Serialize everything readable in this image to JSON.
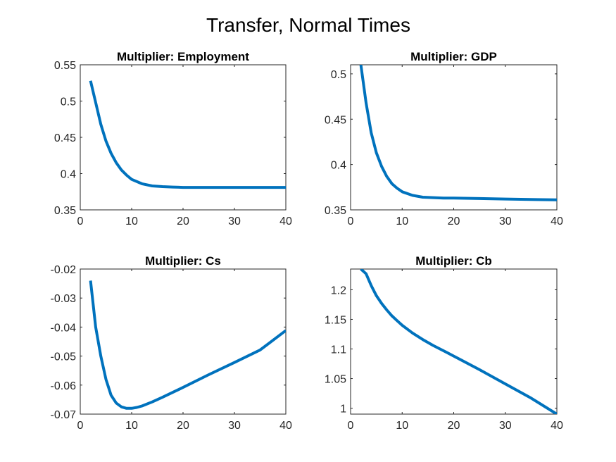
{
  "figure": {
    "title": "Transfer, Normal Times"
  },
  "colors": {
    "line": "#0072BD",
    "axis": "#262626",
    "background": "#ffffff"
  },
  "chart_data": [
    {
      "type": "line",
      "title": "Multiplier: Employment",
      "xlabel": "",
      "ylabel": "",
      "xlim": [
        0,
        40
      ],
      "ylim": [
        0.35,
        0.55
      ],
      "xticks": [
        0,
        10,
        20,
        30,
        40
      ],
      "xtick_labels": [
        "0",
        "10",
        "20",
        "30",
        "40"
      ],
      "yticks": [
        0.35,
        0.4,
        0.45,
        0.5,
        0.55
      ],
      "ytick_labels": [
        "0.35",
        "0.4",
        "0.45",
        "0.5",
        "0.55"
      ],
      "grid": false,
      "series": [
        {
          "x": [
            2,
            3,
            4,
            5,
            6,
            7,
            8,
            9,
            10,
            12,
            14,
            16,
            18,
            20,
            25,
            30,
            35,
            40
          ],
          "values": [
            0.528,
            0.498,
            0.468,
            0.445,
            0.428,
            0.415,
            0.405,
            0.398,
            0.392,
            0.386,
            0.383,
            0.382,
            0.3815,
            0.381,
            0.381,
            0.381,
            0.381,
            0.381
          ]
        }
      ]
    },
    {
      "type": "line",
      "title": "Multiplier: GDP",
      "xlabel": "",
      "ylabel": "",
      "xlim": [
        0,
        40
      ],
      "ylim": [
        0.35,
        0.51
      ],
      "xticks": [
        0,
        10,
        20,
        30,
        40
      ],
      "xtick_labels": [
        "0",
        "10",
        "20",
        "30",
        "40"
      ],
      "yticks": [
        0.35,
        0.4,
        0.45,
        0.5
      ],
      "ytick_labels": [
        "0.35",
        "0.4",
        "0.45",
        "0.5"
      ],
      "grid": false,
      "series": [
        {
          "x": [
            2,
            3,
            4,
            5,
            6,
            7,
            8,
            9,
            10,
            12,
            14,
            16,
            18,
            20,
            25,
            30,
            35,
            40
          ],
          "values": [
            0.51,
            0.468,
            0.435,
            0.413,
            0.398,
            0.387,
            0.379,
            0.374,
            0.37,
            0.366,
            0.364,
            0.3635,
            0.363,
            0.363,
            0.3625,
            0.362,
            0.3615,
            0.361
          ]
        }
      ]
    },
    {
      "type": "line",
      "title": "Multiplier: Cs",
      "xlabel": "",
      "ylabel": "",
      "xlim": [
        0,
        40
      ],
      "ylim": [
        -0.07,
        -0.02
      ],
      "xticks": [
        0,
        10,
        20,
        30,
        40
      ],
      "xtick_labels": [
        "0",
        "10",
        "20",
        "30",
        "40"
      ],
      "yticks": [
        -0.07,
        -0.06,
        -0.05,
        -0.04,
        -0.03,
        -0.02
      ],
      "ytick_labels": [
        "-0.07",
        "-0.06",
        "-0.05",
        "-0.04",
        "-0.03",
        "-0.02"
      ],
      "grid": false,
      "series": [
        {
          "x": [
            2,
            3,
            4,
            5,
            6,
            7,
            8,
            9,
            10,
            11,
            12,
            14,
            16,
            18,
            20,
            25,
            30,
            35,
            40
          ],
          "values": [
            -0.024,
            -0.04,
            -0.05,
            -0.058,
            -0.0635,
            -0.0662,
            -0.0675,
            -0.068,
            -0.068,
            -0.0677,
            -0.0672,
            -0.0658,
            -0.0642,
            -0.0625,
            -0.0608,
            -0.0564,
            -0.0522,
            -0.0479,
            -0.0412
          ]
        }
      ]
    },
    {
      "type": "line",
      "title": "Multiplier: Cb",
      "xlabel": "",
      "ylabel": "",
      "xlim": [
        0,
        40
      ],
      "ylim": [
        0.99,
        1.235
      ],
      "xticks": [
        0,
        10,
        20,
        30,
        40
      ],
      "xtick_labels": [
        "0",
        "10",
        "20",
        "30",
        "40"
      ],
      "yticks": [
        1,
        1.05,
        1.1,
        1.15,
        1.2
      ],
      "ytick_labels": [
        "1",
        "1.05",
        "1.1",
        "1.15",
        "1.2"
      ],
      "grid": false,
      "series": [
        {
          "x": [
            2,
            3,
            4,
            5,
            6,
            7,
            8,
            9,
            10,
            12,
            14,
            16,
            18,
            20,
            25,
            30,
            35,
            40
          ],
          "values": [
            1.235,
            1.227,
            1.207,
            1.19,
            1.177,
            1.166,
            1.156,
            1.148,
            1.14,
            1.127,
            1.116,
            1.106,
            1.097,
            1.088,
            1.065,
            1.041,
            1.017,
            0.99
          ]
        }
      ]
    }
  ]
}
